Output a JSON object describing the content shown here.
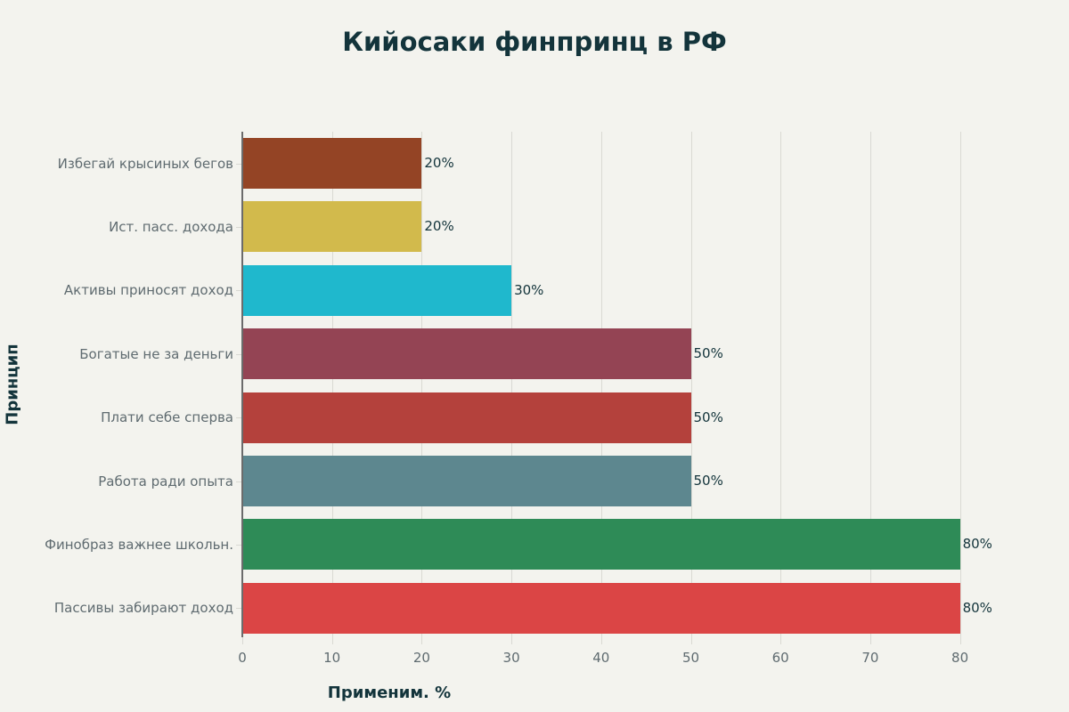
{
  "chart_data": {
    "type": "bar",
    "orientation": "horizontal",
    "title": "Кийосаки финпринц в РФ",
    "xlabel": "Применим. %",
    "ylabel": "Принцип",
    "xlim": [
      0,
      83
    ],
    "xticks": [
      0,
      10,
      20,
      30,
      40,
      50,
      60,
      70,
      80
    ],
    "grid": "vertical",
    "legend": "none",
    "categories": [
      "Избегай крысиных бегов",
      "Ист. пасс. дохода",
      "Активы приносят доход",
      "Богатые не за деньги",
      "Плати себе сперва",
      "Работа ради опыта",
      "Финобраз важнее школьн.",
      "Пассивы забирают доход"
    ],
    "values": [
      20,
      20,
      30,
      50,
      50,
      50,
      80,
      80
    ],
    "value_labels": [
      "20%",
      "20%",
      "30%",
      "50%",
      "50%",
      "50%",
      "80%",
      "80%"
    ],
    "colors": [
      "#944425",
      "#d2ba4c",
      "#1fb8cd",
      "#944454",
      "#b4413c",
      "#5d878f",
      "#2e8b57",
      "#db4545"
    ]
  },
  "title": "Кийосаки финпринц в РФ",
  "xlabel": "Применим. %",
  "ylabel": "Принцип",
  "xticks": [
    "0",
    "10",
    "20",
    "30",
    "40",
    "50",
    "60",
    "70",
    "80"
  ],
  "bars": [
    {
      "label": "Избегай крысиных бегов",
      "value": 20,
      "text": "20%",
      "color": "#944425"
    },
    {
      "label": "Ист. пасс. дохода",
      "value": 20,
      "text": "20%",
      "color": "#d2ba4c"
    },
    {
      "label": "Активы приносят доход",
      "value": 30,
      "text": "30%",
      "color": "#1fb8cd"
    },
    {
      "label": "Богатые не за деньги",
      "value": 50,
      "text": "50%",
      "color": "#944454"
    },
    {
      "label": "Плати себе сперва",
      "value": 50,
      "text": "50%",
      "color": "#b4413c"
    },
    {
      "label": "Работа ради опыта",
      "value": 50,
      "text": "50%",
      "color": "#5d878f"
    },
    {
      "label": "Финобраз важнее школьн.",
      "value": 80,
      "text": "80%",
      "color": "#2e8b57"
    },
    {
      "label": "Пассивы забирают доход",
      "value": 80,
      "text": "80%",
      "color": "#db4545"
    }
  ]
}
